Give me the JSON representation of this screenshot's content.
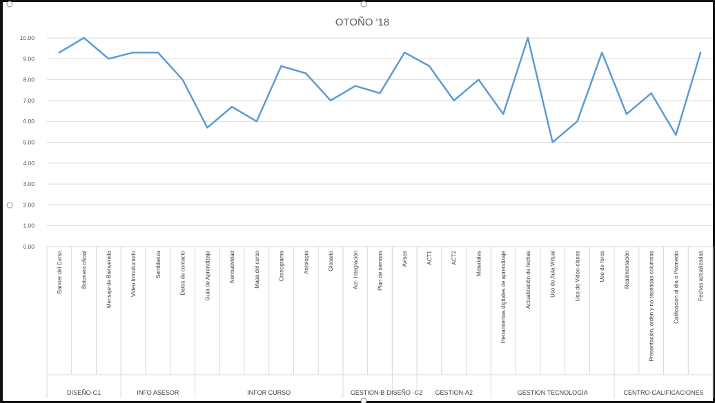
{
  "chart_data": {
    "type": "line",
    "title": "OTOÑO '18",
    "xlabel": "",
    "ylabel": "",
    "ylim": [
      0,
      10
    ],
    "yticks": [
      "0.00",
      "1.00",
      "2.00",
      "3.00",
      "4.00",
      "5.00",
      "6.00",
      "7.00",
      "8.00",
      "9.00",
      "10.00"
    ],
    "grid": true,
    "legend": "none",
    "line_color": "#5b9bd5",
    "categories": [
      "Banner del Curso",
      "Botonera oficial",
      "Mensaje de Bienvenida",
      "Video Introductorio",
      "Semblanza",
      "Datos de contacto",
      "Guía de Aprendizaje",
      "Normatividad",
      "Mapa del curso",
      "Cronograma",
      "Antología",
      "Glosario",
      "Act- Integración",
      "Plan de semana",
      "Avisos",
      "ACT1",
      "ACT2",
      "Materiales",
      "Herramientas digitales de aprendizaje",
      "Actualización de fechas",
      "Uso de Aula Virtual",
      "Uso de Video-clases",
      "Uso de foros",
      "Realimentación",
      "Presentación, orden y no repetidas columnas",
      "Calificación al día o Promedio",
      "Fechas actualizadas"
    ],
    "values": [
      9.3,
      10.0,
      9.0,
      9.3,
      9.3,
      8.0,
      5.7,
      6.7,
      6.0,
      8.65,
      8.3,
      7.0,
      7.7,
      7.35,
      9.3,
      8.65,
      7.0,
      8.0,
      6.35,
      10.0,
      5.0,
      6.0,
      9.3,
      6.35,
      7.35,
      5.35,
      9.3
    ],
    "groups": [
      {
        "label": "DISEÑO-C1",
        "span": 3
      },
      {
        "label": "INFO ASESOR",
        "span": 3
      },
      {
        "label": "INFOR CURSO",
        "span": 6
      },
      {
        "label": "GESTION-B",
        "span": 2
      },
      {
        "label": "DISEÑO -C2",
        "span": 1
      },
      {
        "label": "GESTION-A2",
        "span": 3
      },
      {
        "label": "GESTION TECNOLOGIA",
        "span": 5
      },
      {
        "label": "CENTRO-CALIFICACIONES",
        "span": 4
      }
    ]
  }
}
